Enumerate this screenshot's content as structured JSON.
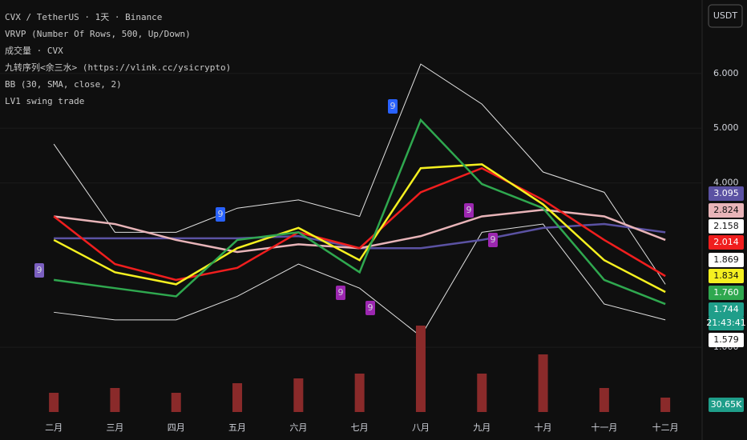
{
  "header": {
    "lines": [
      "CVX / TetherUS · 1天 · Binance",
      "VRVP (Number Of Rows, 500, Up/Down)",
      "成交量 · CVX",
      "九转序列<余三水> (https://vlink.cc/ysicrypto)",
      "BB (30, SMA, close, 2)",
      "LV1 swing trade"
    ],
    "currency_button": "USDT"
  },
  "chart_data": {
    "type": "line",
    "categories": [
      "二月",
      "三月",
      "四月",
      "五月",
      "六月",
      "七月",
      "八月",
      "九月",
      "十月",
      "十一月",
      "十二月"
    ],
    "ylim": [
      -0.4,
      7.34
    ],
    "yticks": [
      {
        "value": 1,
        "label": "1.000"
      },
      {
        "value": 4,
        "label": "4.000"
      },
      {
        "value": 5,
        "label": "5.000"
      },
      {
        "value": 6,
        "label": "6.000"
      }
    ],
    "y2lim": [
      0,
      100
    ],
    "series": [
      {
        "name": "BB upper",
        "color": "#e0e0e0",
        "values": [
          4.71,
          3.1,
          3.1,
          3.54,
          3.69,
          3.39,
          6.17,
          5.44,
          4.2,
          3.83,
          2.15
        ]
      },
      {
        "name": "BB lower",
        "color": "#e0e0e0",
        "values": [
          1.64,
          1.5,
          1.5,
          1.93,
          2.52,
          2.08,
          1.2,
          3.1,
          3.25,
          1.79,
          1.5
        ]
      },
      {
        "name": "MA purple",
        "color": "#5b52a3",
        "values": [
          2.99,
          2.99,
          2.99,
          2.99,
          3.03,
          2.81,
          2.81,
          2.96,
          3.18,
          3.25,
          3.1
        ]
      },
      {
        "name": "MA pink",
        "color": "#e8b4b8",
        "values": [
          3.39,
          3.25,
          2.96,
          2.74,
          2.88,
          2.81,
          3.03,
          3.39,
          3.51,
          3.39,
          2.96
        ]
      },
      {
        "name": "MA red",
        "color": "#f01e1e",
        "values": [
          3.39,
          2.52,
          2.23,
          2.45,
          3.1,
          2.81,
          3.83,
          4.27,
          3.69,
          2.96,
          2.3
        ]
      },
      {
        "name": "MA yellow",
        "color": "#f5f020",
        "values": [
          2.96,
          2.37,
          2.15,
          2.81,
          3.18,
          2.59,
          4.27,
          4.34,
          3.61,
          2.59,
          2.01
        ]
      },
      {
        "name": "Price",
        "color": "#2fa84f",
        "values": [
          2.23,
          2.08,
          1.93,
          2.96,
          3.1,
          2.37,
          5.15,
          3.98,
          3.54,
          2.23,
          1.79
        ]
      },
      {
        "name": "Volume",
        "axis": "y2",
        "color": "#8a2a2a",
        "values": [
          20,
          25,
          20,
          30,
          35,
          40,
          90,
          40,
          60,
          25,
          15
        ]
      }
    ],
    "price_tags": [
      {
        "label": "3.095",
        "color": "#5b52a3"
      },
      {
        "label": "2.824",
        "color": "#e8b4b8"
      },
      {
        "label": "2.158",
        "color": "#ffffff"
      },
      {
        "label": "2.014",
        "color": "#f01e1e"
      },
      {
        "label": "1.869",
        "color": "#ffffff"
      },
      {
        "label": "1.834",
        "color": "#f5f020"
      },
      {
        "label": "1.760",
        "color": "#2fa84f"
      },
      {
        "label": "1.744",
        "color": "#1f9e8a"
      },
      {
        "label": "21:43:41",
        "color": "#1f9e8a"
      },
      {
        "label": "1.579",
        "color": "#ffffff"
      },
      {
        "label": "30.65K",
        "color": "#1f9e8a"
      }
    ],
    "markers": [
      {
        "label": "9",
        "color": "#2962ff"
      },
      {
        "label": "9",
        "color": "#2962ff"
      },
      {
        "label": "9",
        "color": "#7b5fc0"
      },
      {
        "label": "9",
        "color": "#9c27b0"
      },
      {
        "label": "9",
        "color": "#9c27b0"
      },
      {
        "label": "9",
        "color": "#9c27b0"
      },
      {
        "label": "9",
        "color": "#9c27b0"
      }
    ]
  }
}
